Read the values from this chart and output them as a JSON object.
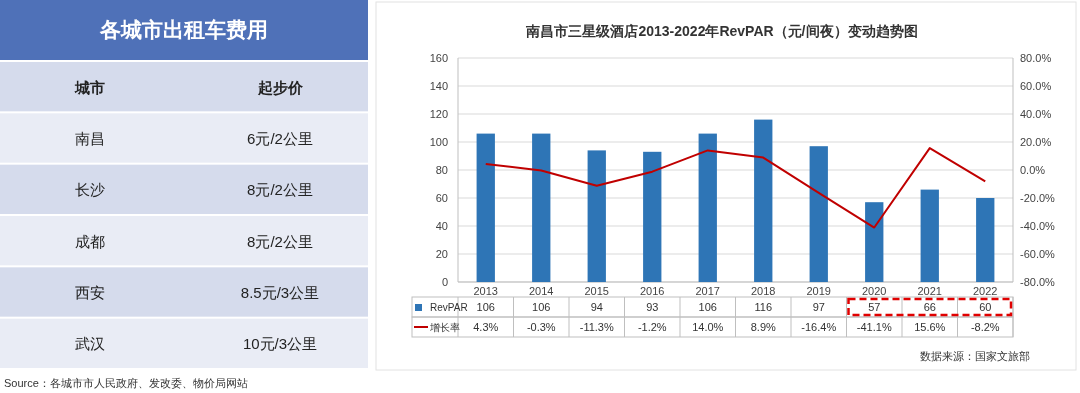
{
  "chart_data": [
    {
      "type": "other",
      "title": "各城市出租车费用",
      "annotations": [
        "城市",
        "起步价",
        "南昌",
        "6元/2公里",
        "长沙",
        "8元/2公里",
        "成都",
        "8元/2公里",
        "西安",
        "8.5元/3公里",
        "武汉",
        "10元/3公里",
        "Source：各城市市人民政府、发改委、物价局网站"
      ]
    },
    {
      "type": "bar",
      "title": "南昌市三星级酒店2013-2022年RevPAR（元/间夜）变动趋势图",
      "categories": [
        "2013",
        "2014",
        "2015",
        "2016",
        "2017",
        "2018",
        "2019",
        "2020",
        "2021",
        "2022"
      ],
      "series": [
        {
          "name": "RevPAR",
          "type": "bar",
          "color": "#2e75b6",
          "values": [
            106,
            106,
            94,
            93,
            106,
            116,
            97,
            57,
            66,
            60
          ],
          "value_labels": [
            "106",
            "106",
            "94",
            "93",
            "106",
            "116",
            "97",
            "57",
            "66",
            "60"
          ]
        },
        {
          "name": "增长率",
          "type": "line",
          "color": "#c00000",
          "axis": "y2",
          "marker": "none",
          "values": [
            4.3,
            -0.3,
            -11.3,
            -1.2,
            14.0,
            8.9,
            -16.4,
            -41.1,
            15.6,
            -8.2
          ],
          "value_labels": [
            "4.3%",
            "-0.3%",
            "-11.3%",
            "-1.2%",
            "14.0%",
            "8.9%",
            "-16.4%",
            "-41.1%",
            "15.6%",
            "-8.2%"
          ]
        }
      ],
      "ylim": [
        0,
        160
      ],
      "yticks": [
        0,
        20,
        40,
        60,
        80,
        100,
        120,
        140,
        160
      ],
      "y2lim": [
        -80,
        80
      ],
      "y2ticks": [
        {
          "value": -80,
          "label": "-80.0%"
        },
        {
          "value": -60,
          "label": "-60.0%"
        },
        {
          "value": -40,
          "label": "-40.0%"
        },
        {
          "value": -20,
          "label": "-20.0%"
        },
        {
          "value": 0,
          "label": "0.0%"
        },
        {
          "value": 20,
          "label": "20.0%"
        },
        {
          "value": 40,
          "label": "40.0%"
        },
        {
          "value": 60,
          "label": "60.0%"
        },
        {
          "value": 80,
          "label": "80.0%"
        }
      ],
      "grid": "y",
      "legend": "bottom",
      "annotations": [
        "数据来源：国家文旅部"
      ]
    }
  ]
}
